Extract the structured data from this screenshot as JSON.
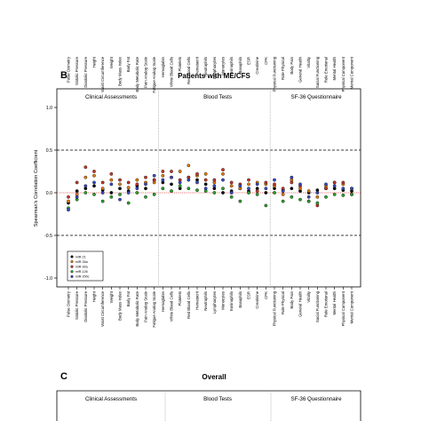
{
  "panels": [
    {
      "label": "B",
      "title": "Patients with ME/CFS",
      "sections": [
        "Clinical Assessments",
        "Blood Tests",
        "SF-36 Questionnaire"
      ]
    },
    {
      "label": "C",
      "title": "Overall",
      "sections": [
        "Clinical Assessments",
        "Blood Tests",
        "SF-36 Questionnaire"
      ]
    }
  ],
  "colors": {
    "miR-21": "#111111",
    "miR-34a": "#e07a10",
    "miR-92a": "#c0392b",
    "miR-126": "#2ca02c",
    "miR-200c": "#3b4cc0",
    "zero_line": "#d62728",
    "dashed_lines": "#000000",
    "separator": "#888888"
  },
  "chart_data": {
    "type": "scatter",
    "title": "Patients with ME/CFS",
    "ylabel": "Spearman's Correlation Coefficient",
    "ylim": [
      -1.0,
      1.0
    ],
    "yticks": [
      -1.0,
      -0.5,
      0.0,
      0.5,
      1.0
    ],
    "reference_lines": {
      "dashed": [
        0.5,
        -0.5
      ],
      "dotted": [
        0.0
      ]
    },
    "section_breaks_after": [
      "Fatigue Analog Scale",
      "CPK"
    ],
    "legend_position": "bottom-left",
    "categories": [
      "Pulse Oximetry",
      "Sistolic Pressure",
      "Diastolic Pressure",
      "Height",
      "Waist Circumference",
      "Weight",
      "Body Mass Index",
      "Body Fat",
      "Body Metabolic Rate",
      "Pain Analog Scale",
      "Fatigue Analog Scale",
      "Hemoglobin",
      "White Blood Cells",
      "Platelets",
      "Red Blood Cells",
      "Hematocrit",
      "Neutrophils",
      "Lymphocytes",
      "Monocytes",
      "Eosinophils",
      "Basophils",
      "ESR",
      "Creatinine",
      "CPK",
      "Physical Functioning",
      "Role Physical",
      "Body Pain",
      "General Health",
      "Vitality",
      "Social Functioning",
      "Role Emotional",
      "Mental Health",
      "Physical Component",
      "Mental Component"
    ],
    "series": [
      {
        "name": "miR-21",
        "values": [
          -0.12,
          0.02,
          0.05,
          0.08,
          0.03,
          0.0,
          0.05,
          0.02,
          0.08,
          0.05,
          0.15,
          0.12,
          0.1,
          0.05,
          0.18,
          0.15,
          0.1,
          0.05,
          0.0,
          0.02,
          0.05,
          0.02,
          0.05,
          0.0,
          0.05,
          0.03,
          0.05,
          0.02,
          0.0,
          0.03,
          0.05,
          0.05,
          0.03,
          0.02
        ]
      },
      {
        "name": "miR-34a",
        "values": [
          -0.1,
          -0.02,
          0.18,
          0.2,
          0.05,
          0.15,
          0.1,
          0.06,
          0.15,
          0.12,
          0.12,
          0.2,
          0.18,
          0.25,
          0.32,
          0.2,
          0.22,
          0.12,
          0.22,
          0.08,
          0.05,
          0.1,
          0.12,
          0.1,
          0.08,
          -0.02,
          0.15,
          0.05,
          0.02,
          -0.05,
          0.08,
          0.12,
          0.1,
          -0.02
        ]
      },
      {
        "name": "miR-92a",
        "values": [
          -0.05,
          0.12,
          0.3,
          0.25,
          0.12,
          0.22,
          0.15,
          0.12,
          0.1,
          0.18,
          0.15,
          0.25,
          0.25,
          0.15,
          0.18,
          0.22,
          0.15,
          0.15,
          0.27,
          0.12,
          0.1,
          0.15,
          0.02,
          0.12,
          0.1,
          0.05,
          0.12,
          0.08,
          -0.1,
          -0.15,
          0.05,
          0.12,
          0.12,
          0.05
        ]
      },
      {
        "name": "miR-126",
        "values": [
          -0.18,
          -0.08,
          0.0,
          -0.02,
          -0.1,
          -0.05,
          -0.02,
          -0.12,
          0.0,
          -0.05,
          -0.02,
          0.05,
          0.02,
          0.08,
          0.05,
          0.03,
          0.02,
          0.0,
          0.05,
          -0.05,
          -0.1,
          0.0,
          -0.02,
          -0.15,
          0.0,
          -0.1,
          -0.05,
          -0.08,
          -0.1,
          -0.12,
          -0.05,
          -0.02,
          -0.03,
          -0.02
        ]
      },
      {
        "name": "miR-200c",
        "values": [
          -0.2,
          -0.05,
          0.08,
          0.12,
          0.0,
          0.1,
          -0.08,
          0.0,
          0.05,
          0.1,
          0.2,
          0.15,
          0.18,
          0.12,
          0.15,
          0.12,
          0.05,
          0.08,
          0.15,
          0.0,
          0.08,
          0.05,
          0.1,
          0.05,
          0.15,
          0.02,
          0.18,
          0.1,
          -0.05,
          0.0,
          0.1,
          0.08,
          0.05,
          0.05
        ]
      }
    ]
  }
}
